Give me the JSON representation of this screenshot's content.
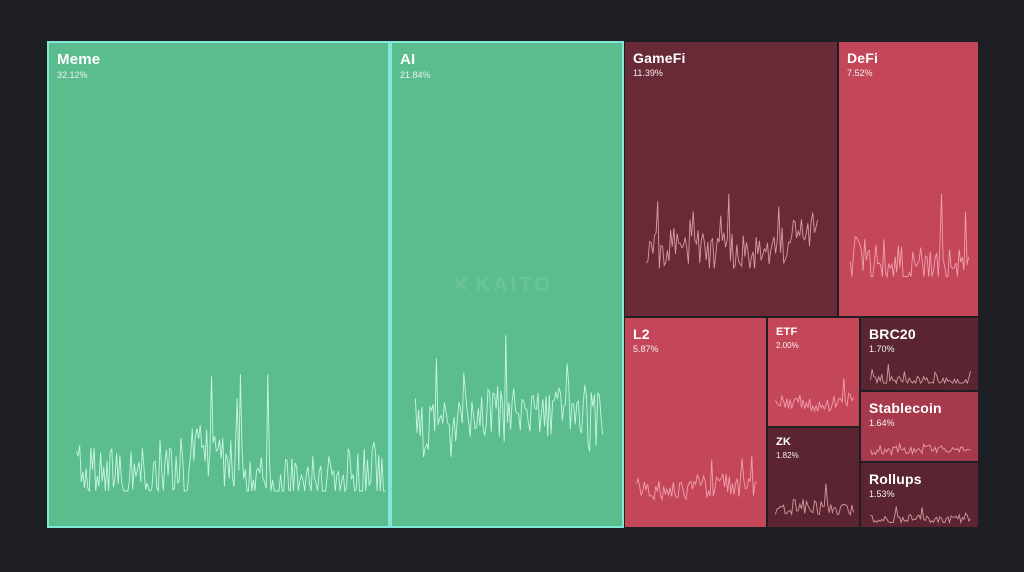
{
  "chart_data": {
    "type": "treemap",
    "title": "",
    "colors": {
      "background": "#1d1f24",
      "positive": "#5bbd8e",
      "positive_border": "#7fe8d6",
      "negative_strong": "#c44659",
      "negative_mid": "#a63a4c",
      "negative_dark": "#682a37",
      "negative_darker": "#5a2530"
    },
    "tiles": [
      {
        "name": "Meme",
        "share_pct": "32.12%",
        "share": 32.12,
        "direction": "up",
        "shade": "positive"
      },
      {
        "name": "AI",
        "share_pct": "21.84%",
        "share": 21.84,
        "direction": "up",
        "shade": "positive"
      },
      {
        "name": "GameFi",
        "share_pct": "11.39%",
        "share": 11.39,
        "direction": "down",
        "shade": "negative_dark"
      },
      {
        "name": "DeFi",
        "share_pct": "7.52%",
        "share": 7.52,
        "direction": "down",
        "shade": "negative_strong"
      },
      {
        "name": "L2",
        "share_pct": "5.87%",
        "share": 5.87,
        "direction": "down",
        "shade": "negative_strong"
      },
      {
        "name": "ETF",
        "share_pct": "2.00%",
        "share": 2.0,
        "direction": "down",
        "shade": "negative_strong"
      },
      {
        "name": "ZK",
        "share_pct": "1.82%",
        "share": 1.82,
        "direction": "down",
        "shade": "negative_darker"
      },
      {
        "name": "BRC20",
        "share_pct": "1.70%",
        "share": 1.7,
        "direction": "down",
        "shade": "negative_darker"
      },
      {
        "name": "Stablecoin",
        "share_pct": "1.64%",
        "share": 1.64,
        "direction": "down",
        "shade": "negative_mid"
      },
      {
        "name": "Rollups",
        "share_pct": "1.53%",
        "share": 1.53,
        "direction": "down",
        "shade": "negative_darker"
      }
    ]
  },
  "watermark": {
    "text": "KAITO"
  }
}
